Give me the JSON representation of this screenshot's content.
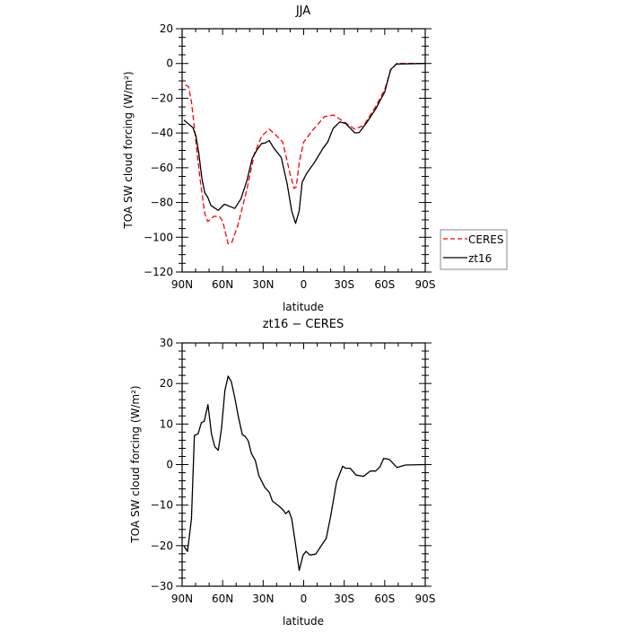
{
  "chart_data": [
    {
      "type": "line",
      "title": "JJA",
      "xlabel": "latitude",
      "ylabel": "TOA SW cloud forcing (W/m²)",
      "xlim": [
        90,
        -90
      ],
      "ylim": [
        -120,
        20
      ],
      "xticks": [
        90,
        60,
        30,
        0,
        -30,
        -60,
        -90
      ],
      "xtick_labels": [
        "90N",
        "60N",
        "30N",
        "0",
        "30S",
        "60S",
        "90S"
      ],
      "yticks": [
        20,
        0,
        -20,
        -40,
        -60,
        -80,
        -100,
        -120
      ],
      "ytick_labels": [
        "20",
        "0",
        "−20",
        "−40",
        "−60",
        "−80",
        "−100",
        "−120"
      ],
      "legend_position": "right-bottom outside",
      "series": [
        {
          "name": "CERES",
          "color": "#ff0000",
          "dash": true,
          "x": [
            87.6,
            85.3,
            83.1,
            79.8,
            76.5,
            73.2,
            71,
            66.5,
            62.1,
            59.9,
            55.9,
            53.2,
            48.8,
            42.1,
            36.6,
            31,
            25.5,
            21,
            15.5,
            9.9,
            7.1,
            5.5,
            3.3,
            0,
            -6.7,
            -15.5,
            -22.2,
            -28.9,
            -37.8,
            -44.5,
            -53.3,
            -60,
            -64.4,
            -68.8,
            -90
          ],
          "y": [
            -12.4,
            -13.3,
            -21.9,
            -45.2,
            -67.6,
            -86.6,
            -90.9,
            -87.9,
            -88.3,
            -90.9,
            -103.8,
            -103,
            -93.4,
            -72.8,
            -52.1,
            -41.7,
            -37.8,
            -40.9,
            -45.2,
            -64.1,
            -71.9,
            -71,
            -57.2,
            -45.2,
            -38.3,
            -30.5,
            -29.7,
            -33.1,
            -37.8,
            -35.7,
            -24.8,
            -15,
            -3.8,
            0,
            0
          ]
        },
        {
          "name": "zt16",
          "color": "#000000",
          "dash": false,
          "x": [
            88.7,
            82,
            79.8,
            77.6,
            75.4,
            73.2,
            71,
            68.7,
            63.2,
            58.7,
            51,
            46.5,
            42.1,
            38.1,
            34.4,
            31,
            28.4,
            25.5,
            22.2,
            16.6,
            12.2,
            8.9,
            6,
            3.3,
            1.1,
            -2.2,
            -7.8,
            -14.5,
            -17.8,
            -21.8,
            -26.7,
            -31.1,
            -37.8,
            -41.1,
            -46.7,
            -53.3,
            -60,
            -64.4,
            -68.8,
            -90
          ],
          "y": [
            -32.6,
            -36.9,
            -41.7,
            -52,
            -65.9,
            -74.5,
            -77,
            -81.7,
            -84.5,
            -81,
            -83.4,
            -78,
            -67.6,
            -54.7,
            -49.5,
            -46,
            -45.7,
            -44.3,
            -48.6,
            -54.1,
            -69.3,
            -84.8,
            -92,
            -84.8,
            -68.4,
            -63.3,
            -57.2,
            -48.6,
            -45.2,
            -37.4,
            -33.6,
            -34.5,
            -40,
            -39.7,
            -34,
            -26.2,
            -16.4,
            -3.4,
            -0.3,
            0
          ]
        }
      ]
    },
    {
      "type": "line",
      "title": "zt16 − CERES",
      "xlabel": "latitude",
      "ylabel": "TOA SW cloud forcing (W/m²)",
      "xlim": [
        90,
        -90
      ],
      "ylim": [
        -30,
        30
      ],
      "xticks": [
        90,
        60,
        30,
        0,
        -30,
        -60,
        -90
      ],
      "xtick_labels": [
        "90N",
        "60N",
        "30N",
        "0",
        "30S",
        "60S",
        "90S"
      ],
      "yticks": [
        30,
        20,
        10,
        0,
        -10,
        -20,
        -30
      ],
      "ytick_labels": [
        "30",
        "20",
        "10",
        "0",
        "−10",
        "−20",
        "−30"
      ],
      "series": [
        {
          "name": "zt16 - CERES",
          "color": "#000000",
          "dash": false,
          "x": [
            88.7,
            86,
            83.1,
            80.9,
            78.2,
            75.8,
            73.6,
            70.9,
            68.3,
            65.8,
            63.2,
            60.9,
            58.3,
            55.9,
            53.6,
            51,
            48.3,
            45.4,
            43.2,
            41,
            38.8,
            35.8,
            33.2,
            28.7,
            25.5,
            23.2,
            18.8,
            15.5,
            13.2,
            11,
            8.9,
            6.2,
            3.3,
            0.4,
            -1.8,
            -4.5,
            -8.9,
            -12.2,
            -16.7,
            -20,
            -24.4,
            -28.9,
            -31.1,
            -34.4,
            -38.8,
            -44.4,
            -49.2,
            -53.3,
            -56.6,
            -59.2,
            -63.2,
            -69.1,
            -75.4,
            -90
          ],
          "y": [
            -20.1,
            -21.4,
            -13.4,
            7.2,
            7.6,
            10.3,
            10.7,
            14.8,
            7.6,
            4.4,
            3.5,
            8.7,
            18.3,
            21.8,
            20.5,
            16.5,
            11.7,
            7.4,
            6.9,
            5.8,
            2.8,
            1,
            -2.7,
            -5.7,
            -6.8,
            -9,
            -10.1,
            -11.1,
            -12.1,
            -11.4,
            -13.3,
            -19.3,
            -26.1,
            -22.3,
            -21.4,
            -22.3,
            -22.1,
            -20.4,
            -18.2,
            -12.7,
            -4.2,
            -0.4,
            -0.9,
            -0.9,
            -2.6,
            -2.9,
            -1.6,
            -1.6,
            -0.5,
            1.5,
            1.3,
            -0.7,
            -0.1,
            0
          ]
        }
      ]
    }
  ]
}
